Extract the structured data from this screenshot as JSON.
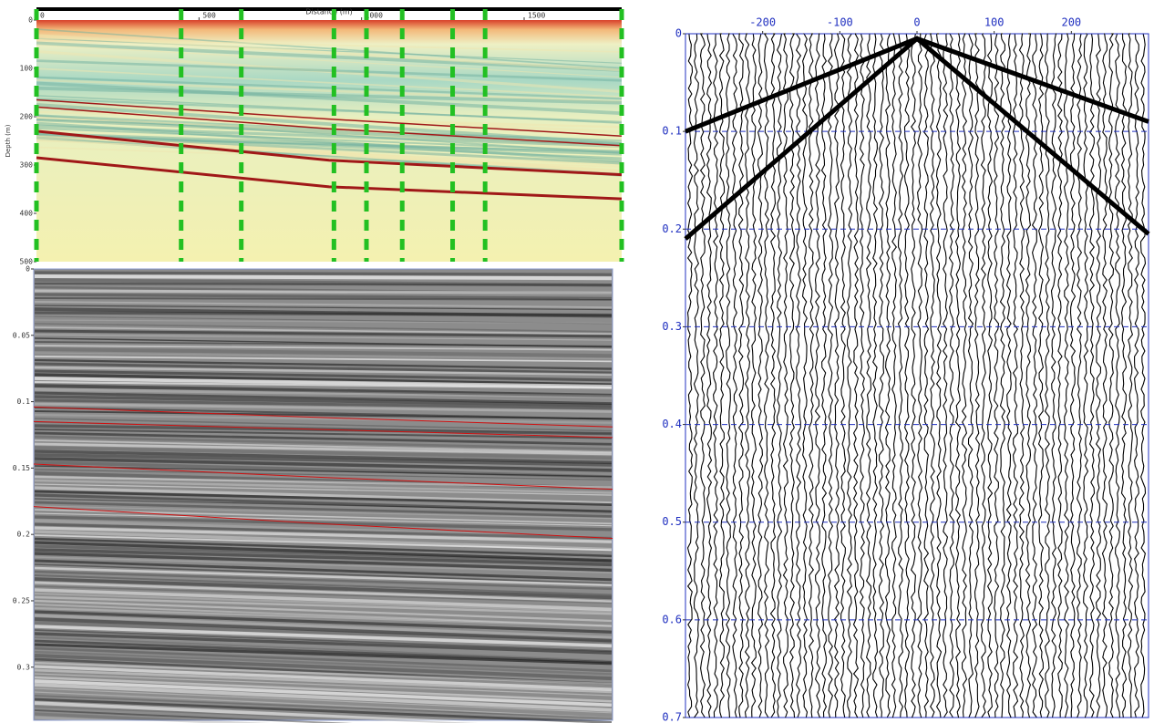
{
  "chart_data": [
    {
      "type": "image",
      "x_label": "Distance (m)",
      "y_label": "Depth (m)",
      "xlim": [
        0,
        1800
      ],
      "ylim": [
        0,
        500
      ],
      "y_reversed": true,
      "xticks": [
        0,
        500,
        1000,
        1500
      ],
      "yticks": [
        0,
        100,
        200,
        300,
        400,
        500
      ],
      "wells": {
        "color": "#22c022",
        "x": [
          0,
          445,
          630,
          915,
          1015,
          1125,
          1280,
          1380,
          1800
        ]
      },
      "series": [
        {
          "color": "#a01818",
          "x": [
            0,
            900,
            1800
          ],
          "values": [
            165,
            205,
            240
          ]
        },
        {
          "color": "#a01818",
          "x": [
            0,
            900,
            1800
          ],
          "values": [
            180,
            225,
            260
          ]
        },
        {
          "color": "#a01818",
          "x": [
            0,
            900,
            1800
          ],
          "values": [
            230,
            290,
            320
          ]
        },
        {
          "color": "#a01818",
          "x": [
            0,
            900,
            1800
          ],
          "values": [
            285,
            345,
            370
          ]
        }
      ]
    },
    {
      "type": "image",
      "xlim": [
        0,
        1800
      ],
      "ylim": [
        0,
        0.34
      ],
      "y_reversed": true,
      "yticks": [
        0,
        0.05,
        0.1,
        0.15,
        0.2,
        0.25,
        0.3
      ],
      "series": [
        {
          "color": "#d01010",
          "x": [
            0,
            900,
            1800
          ],
          "values": [
            0.104,
            0.112,
            0.119
          ]
        },
        {
          "color": "#d01010",
          "x": [
            0,
            900,
            1800
          ],
          "values": [
            0.115,
            0.121,
            0.127
          ]
        },
        {
          "color": "#d01010",
          "x": [
            0,
            900,
            1800
          ],
          "values": [
            0.147,
            0.157,
            0.166
          ]
        },
        {
          "color": "#d01010",
          "x": [
            0,
            900,
            1800
          ],
          "values": [
            0.179,
            0.192,
            0.203
          ]
        }
      ]
    },
    {
      "type": "wiggle",
      "xlim": [
        -300,
        300
      ],
      "ylim": [
        0,
        0.7
      ],
      "y_reversed": true,
      "grid": true,
      "grid_color": "#2030c0",
      "xticks": [
        -200,
        -100,
        0,
        100,
        200
      ],
      "yticks": [
        0,
        0.1,
        0.2,
        0.3,
        0.4,
        0.5,
        0.6,
        0.7
      ],
      "series": [
        {
          "color": "#000000",
          "x": [
            -300,
            0,
            300
          ],
          "values": [
            0.1,
            0.005,
            0.09
          ]
        },
        {
          "color": "#000000",
          "x": [
            -300,
            0,
            300
          ],
          "values": [
            0.21,
            0.005,
            0.205
          ]
        }
      ]
    }
  ]
}
